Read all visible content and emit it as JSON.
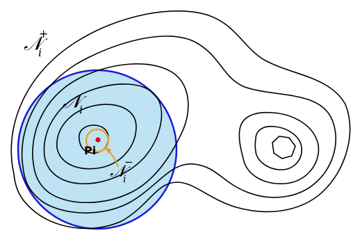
{
  "labels": {
    "outer_neighborhood": {
      "base": "𝒩",
      "sub": "i",
      "sup": "+"
    },
    "neighborhood": {
      "base": "𝒩",
      "sub": "i"
    },
    "inner_neighborhood": {
      "base": "𝒩",
      "sub": "i",
      "sup": "−"
    },
    "point": "Pi"
  },
  "colors": {
    "contour": "#000000",
    "disk_fill": "#bde3f5",
    "disk_stroke": "#1a1ad6",
    "inner_circle": "#f0a020",
    "arrow": "#e39a2a",
    "point": "#e00000"
  }
}
